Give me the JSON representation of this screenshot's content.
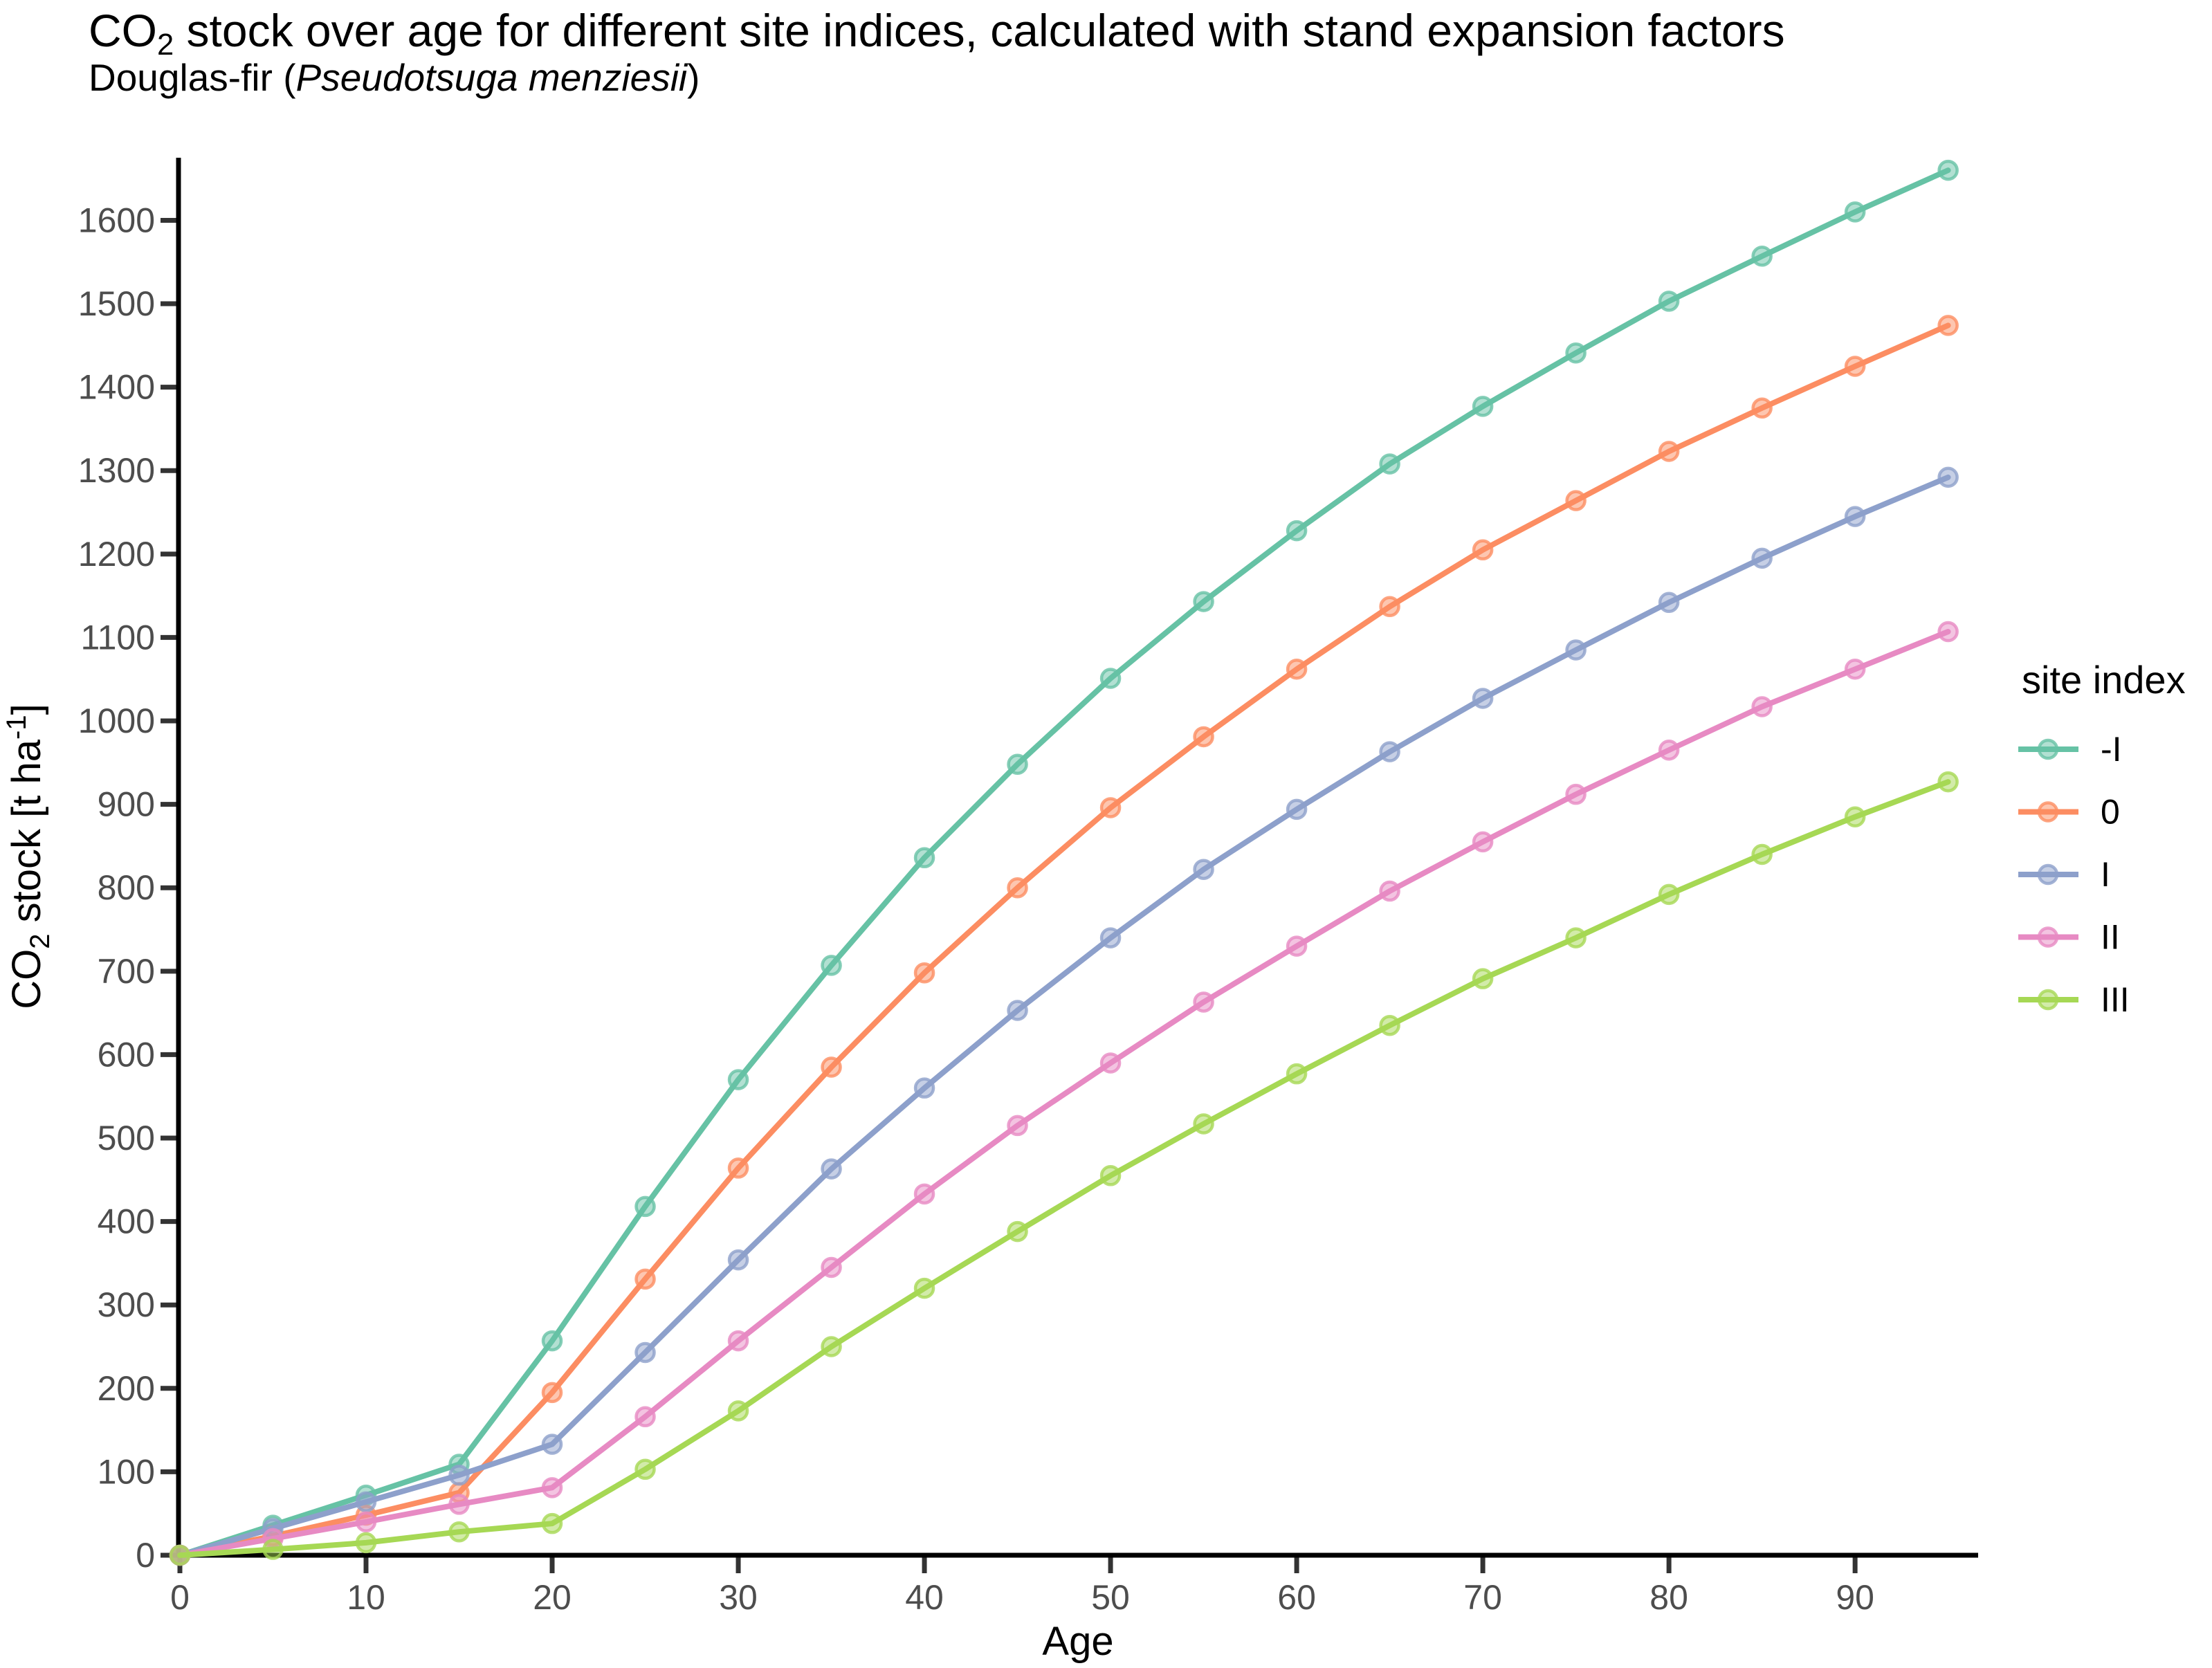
{
  "title": {
    "pre": "CO",
    "sub": "2",
    "post": " stock over age for different site indices, calculated with stand expansion factors"
  },
  "subtitle": {
    "pre": "Douglas-fir (",
    "italic": "Pseudotsuga menziesii",
    "post": ")"
  },
  "colors": {
    "axis_line": "#000000",
    "tick_mark": "#333333",
    "tick_label": "#4D4D4D",
    "axis_title": "#000000",
    "background": "#FFFFFF"
  },
  "chart_data": {
    "type": "line",
    "title": "CO2 stock over age for different site indices, calculated with stand expansion factors",
    "subtitle": "Douglas-fir (Pseudotsuga menziesii)",
    "xlabel": "Age",
    "ylabel": {
      "pre": "CO",
      "sub": "2",
      "mid": " stock [t ha",
      "sup": "-1",
      "post": "]"
    },
    "grid": false,
    "legend_position": "right",
    "legend_title": "site index",
    "xlim": [
      0,
      96.5
    ],
    "ylim": [
      0,
      1675
    ],
    "x_ticks": [
      0,
      10,
      20,
      30,
      40,
      50,
      60,
      70,
      80,
      90
    ],
    "y_ticks": [
      0,
      100,
      200,
      300,
      400,
      500,
      600,
      700,
      800,
      900,
      1000,
      1100,
      1200,
      1300,
      1400,
      1500,
      1600
    ],
    "x": [
      0,
      5,
      10,
      15,
      20,
      25,
      30,
      35,
      40,
      45,
      50,
      55,
      60,
      65,
      70,
      75,
      80,
      85,
      90,
      95
    ],
    "series": [
      {
        "name": "-I",
        "color": "#66C2A5",
        "values": [
          0,
          36,
          72,
          109,
          257,
          418,
          570,
          707,
          836,
          948,
          1051,
          1143,
          1228,
          1308,
          1377,
          1441,
          1503,
          1557,
          1610,
          1660
        ]
      },
      {
        "name": "0",
        "color": "#FC8D62",
        "values": [
          0,
          23,
          48,
          75,
          195,
          331,
          464,
          585,
          698,
          800,
          896,
          981,
          1062,
          1137,
          1205,
          1264,
          1323,
          1375,
          1425,
          1474
        ]
      },
      {
        "name": "I",
        "color": "#8DA0CB",
        "values": [
          0,
          32,
          64,
          96,
          133,
          243,
          354,
          463,
          560,
          653,
          740,
          822,
          894,
          963,
          1027,
          1085,
          1142,
          1195,
          1245,
          1292
        ]
      },
      {
        "name": "II",
        "color": "#E78AC3",
        "values": [
          0,
          20,
          40,
          61,
          81,
          166,
          257,
          345,
          433,
          515,
          590,
          663,
          730,
          796,
          855,
          912,
          965,
          1017,
          1062,
          1107
        ]
      },
      {
        "name": "III",
        "color": "#A6D854",
        "values": [
          0,
          7,
          15,
          28,
          38,
          103,
          173,
          250,
          320,
          388,
          455,
          517,
          577,
          635,
          691,
          740,
          792,
          840,
          885,
          927
        ]
      }
    ]
  }
}
